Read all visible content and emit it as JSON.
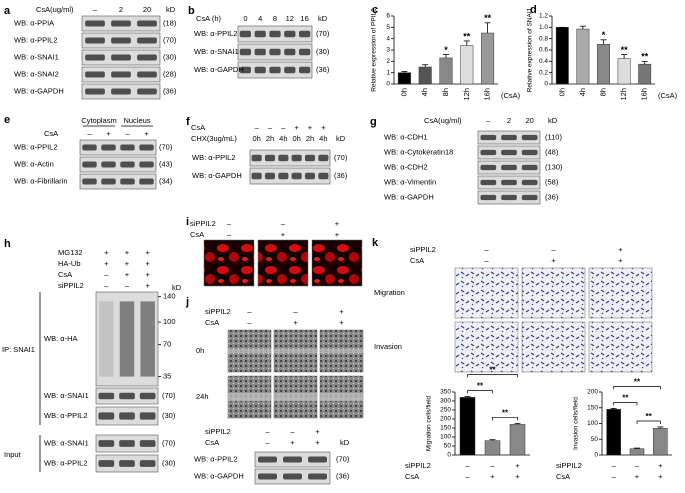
{
  "blots": {
    "a": {
      "label": "a",
      "headers": [
        {
          "name": "CsA(ug/ml)",
          "values": [
            "–",
            "2",
            "20"
          ]
        }
      ],
      "unit": "kD",
      "rows": [
        {
          "name": "WB: α-PPIA",
          "kd": "(18)"
        },
        {
          "name": "WB: α-PPIL2",
          "kd": "(70)"
        },
        {
          "name": "WB: α-SNAI1",
          "kd": "(30)"
        },
        {
          "name": "WB: α-SNAI2",
          "kd": "(28)"
        },
        {
          "name": "WB: α-GAPDH",
          "kd": "(36)"
        }
      ]
    },
    "b": {
      "label": "b",
      "headers": [
        {
          "name": "CsA (h)",
          "values": [
            "0",
            "4",
            "8",
            "12",
            "16"
          ]
        }
      ],
      "unit": "kD",
      "rows": [
        {
          "name": "WB: α-PPIL2",
          "kd": "(70)"
        },
        {
          "name": "WB: α-SNAI1",
          "kd": "(30)"
        },
        {
          "name": "WB: α-GAPDH",
          "kd": "(36)"
        }
      ]
    },
    "e": {
      "label": "e",
      "groups": [
        "Cytoplasm",
        "Nucleus"
      ],
      "headers": [
        {
          "name": "CsA",
          "values": [
            "–",
            "+",
            "–",
            "+"
          ]
        }
      ],
      "rows": [
        {
          "name": "WB: α-PPIL2",
          "kd": "(70)"
        },
        {
          "name": "WB: α-Actin",
          "kd": "(43)"
        },
        {
          "name": "WB: α-Fibrillarin",
          "kd": "(34)"
        }
      ]
    },
    "f": {
      "label": "f",
      "headers": [
        {
          "name": "CsA",
          "values": [
            "–",
            "–",
            "–",
            "+",
            "+",
            "+"
          ]
        },
        {
          "name": "CHX(3ug/mL)",
          "values": [
            "0h",
            "2h",
            "4h",
            "0h",
            "2h",
            "4h"
          ]
        }
      ],
      "unit": "kD",
      "rows": [
        {
          "name": "WB: α-PPIL2",
          "kd": "(70)"
        },
        {
          "name": "WB: α-GAPDH",
          "kd": "(36)"
        }
      ]
    },
    "g": {
      "label": "g",
      "headers": [
        {
          "name": "CsA(ug/ml)",
          "values": [
            "–",
            "2",
            "20"
          ]
        }
      ],
      "unit": "kD",
      "rows": [
        {
          "name": "WB: α-CDH1",
          "kd": "(110)"
        },
        {
          "name": "WB: α-Cytokeratin18",
          "kd": "(48)"
        },
        {
          "name": "WB: α-CDH2",
          "kd": "(130)"
        },
        {
          "name": "WB: α-Vimentin",
          "kd": "(58)"
        },
        {
          "name": "WB: α-GAPDH",
          "kd": "(36)"
        }
      ]
    },
    "h": {
      "label": "h",
      "headers": [
        {
          "name": "MG132",
          "values": [
            "+",
            "+",
            "+"
          ]
        },
        {
          "name": "HA-Ub",
          "values": [
            "+",
            "+",
            "+"
          ]
        },
        {
          "name": "CsA",
          "values": [
            "–",
            "+",
            "+"
          ]
        },
        {
          "name": "siPPIL2",
          "values": [
            "–",
            "–",
            "+"
          ]
        }
      ],
      "unit": "kD",
      "markers": [
        "140",
        "100",
        "70",
        "35"
      ],
      "ip_label": "IP: SNAI1",
      "input_label": "Input",
      "rows": [
        {
          "name": "WB: α-HA"
        },
        {
          "name": "WB: α-SNAI1",
          "kd": "(70)"
        },
        {
          "name": "WB: α-PPIL2",
          "kd": "(30)"
        },
        {
          "name": "WB: α-SNAI1",
          "kd": "(70)"
        },
        {
          "name": "WB: α-PPIL2",
          "kd": "(30)"
        }
      ]
    },
    "j": {
      "headers": [
        {
          "name": "siPPIL2",
          "values": [
            "–",
            "–",
            "+"
          ]
        },
        {
          "name": "CsA",
          "values": [
            "–",
            "+",
            "+"
          ]
        }
      ],
      "unit": "kD",
      "rows": [
        {
          "name": "WB: α-PPIL2",
          "kd": "(70)"
        },
        {
          "name": "WB: α-GAPDH",
          "kd": "(36)"
        }
      ]
    }
  },
  "images": {
    "i": {
      "label": "i",
      "headers": [
        {
          "name": "siPPIL2",
          "values": [
            "–",
            "–",
            "+"
          ]
        },
        {
          "name": "CsA",
          "values": [
            "–",
            "+",
            "+"
          ]
        }
      ]
    },
    "j": {
      "label": "j",
      "headers": [
        {
          "name": "siPPIL2",
          "values": [
            "–",
            "–",
            "+"
          ]
        },
        {
          "name": "CsA",
          "values": [
            "–",
            "+",
            "+"
          ]
        }
      ],
      "rows": [
        "0h",
        "24h"
      ]
    },
    "k": {
      "label": "k",
      "headers": [
        {
          "name": "siPPIL2",
          "values": [
            "–",
            "–",
            "+"
          ]
        },
        {
          "name": "CsA",
          "values": [
            "–",
            "+",
            "+"
          ]
        }
      ],
      "rows": [
        "Migration",
        "Invasion"
      ]
    }
  },
  "chart_data": [
    {
      "type": "bar",
      "label": "c",
      "ylabel": "Relative expression of PPIL2",
      "categories": [
        "0h",
        "4h",
        "8h",
        "12h",
        "16h"
      ],
      "values": [
        1,
        1.5,
        2.3,
        3.4,
        4.5
      ],
      "errors": [
        0.1,
        0.2,
        0.3,
        0.4,
        0.9
      ],
      "significance": [
        null,
        null,
        "*",
        "**",
        "**"
      ],
      "x_note": "(CsA)",
      "colors": [
        "#000000",
        "#555555",
        "#888888",
        "#dddddd",
        "#999999"
      ],
      "ylim": [
        0,
        6
      ],
      "yticks": [
        0,
        1,
        2,
        3,
        4,
        5,
        6
      ]
    },
    {
      "type": "bar",
      "label": "d",
      "ylabel": "Relative expression of SNAI1",
      "categories": [
        "0h",
        "4h",
        "8h",
        "12h",
        "16h"
      ],
      "values": [
        1,
        0.97,
        0.7,
        0.45,
        0.35
      ],
      "errors": [
        0,
        0.05,
        0.08,
        0.07,
        0.05
      ],
      "significance": [
        null,
        null,
        "*",
        "**",
        "**"
      ],
      "x_note": "(CsA)",
      "colors": [
        "#000000",
        "#aaaaaa",
        "#888888",
        "#dddddd",
        "#777777"
      ],
      "ylim": [
        0,
        1.2
      ],
      "yticks": [
        0,
        0.2,
        0.4,
        0.6,
        0.8,
        {
          "value": 1,
          "label": "1.0"
        },
        1.2
      ]
    },
    {
      "type": "bar",
      "ylabel": "Migration cells/field",
      "values": [
        320,
        80,
        170
      ],
      "errors": [
        5,
        5,
        6
      ],
      "colors": [
        "#000000",
        "#888888",
        "#888888"
      ],
      "ylim": [
        0,
        350
      ],
      "yticks": [
        0,
        50,
        100,
        150,
        200,
        250,
        300,
        350
      ],
      "brackets": [
        {
          "from": 0,
          "to": 1,
          "label": "**"
        },
        {
          "from": 1,
          "to": 2,
          "label": "**"
        },
        {
          "from": 0,
          "to": 2,
          "label": "**"
        }
      ],
      "conditions": [
        {
          "name": "siPPIL2",
          "values": [
            "–",
            "–",
            "+"
          ]
        },
        {
          "name": "CsA",
          "values": [
            "–",
            "+",
            "+"
          ]
        }
      ]
    },
    {
      "type": "bar",
      "ylabel": "Invasion cells/field",
      "values": [
        145,
        20,
        85
      ],
      "errors": [
        3,
        2,
        4
      ],
      "colors": [
        "#000000",
        "#888888",
        "#888888"
      ],
      "ylim": [
        0,
        200
      ],
      "yticks": [
        0,
        50,
        100,
        150,
        200
      ],
      "brackets": [
        {
          "from": 0,
          "to": 1,
          "label": "**"
        },
        {
          "from": 1,
          "to": 2,
          "label": "**"
        },
        {
          "from": 0,
          "to": 2,
          "label": "**"
        }
      ],
      "conditions": [
        {
          "name": "siPPIL2",
          "values": [
            "–",
            "–",
            "+"
          ]
        },
        {
          "name": "CsA",
          "values": [
            "–",
            "+",
            "+"
          ]
        }
      ]
    }
  ]
}
